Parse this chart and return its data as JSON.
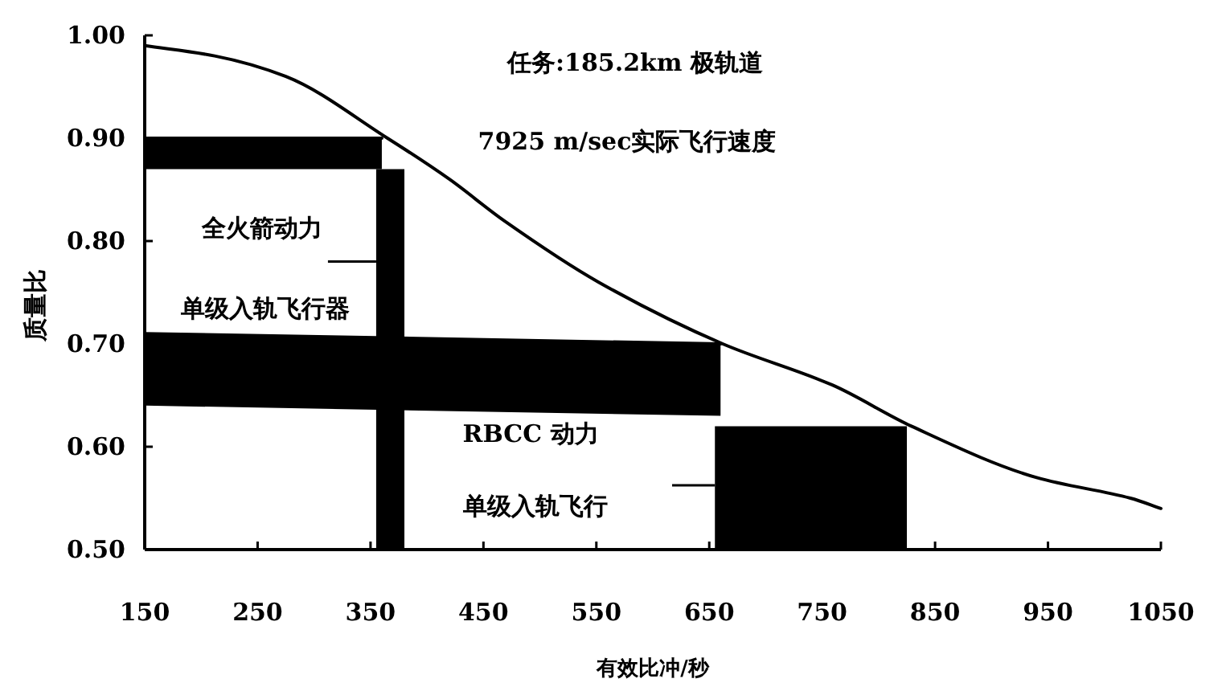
{
  "chart_data": {
    "type": "line",
    "xlabel": "有效比冲/秒",
    "ylabel": "质量比",
    "xlim": [
      150,
      1050
    ],
    "ylim": [
      0.5,
      1.0
    ],
    "xticks": [
      150,
      250,
      350,
      450,
      550,
      650,
      750,
      850,
      950,
      1050
    ],
    "yticks": [
      {
        "value": 0.5,
        "label": "0.50"
      },
      {
        "value": 0.6,
        "label": "0.60"
      },
      {
        "value": 0.7,
        "label": "0.70"
      },
      {
        "value": 0.8,
        "label": "0.80"
      },
      {
        "value": 0.9,
        "label": "0.90"
      },
      {
        "value": 1.0,
        "label": "1.00"
      }
    ],
    "line_style": "solid",
    "series": [
      {
        "type": "line",
        "color": "#000000",
        "x": [
          150,
          360
        ],
        "values": [
          0.9,
          0.9
        ],
        "lower": [
          0.87,
          0.87
        ],
        "upper": [
          0.9,
          0.9
        ]
      },
      {
        "type": "area",
        "color": "#000000",
        "x": [
          355,
          380
        ],
        "values": [
          0.87,
          0.87
        ]
      },
      {
        "type": "line",
        "color": "#000000",
        "x": [
          150,
          660
        ],
        "values": [
          0.71,
          0.7
        ],
        "lower": [
          0.64,
          0.63
        ],
        "upper": [
          0.71,
          0.7
        ]
      },
      {
        "type": "area",
        "color": "#000000",
        "x": [
          655,
          825
        ],
        "values": [
          0.62,
          0.62
        ]
      },
      {
        "color": "#000000",
        "x": [
          150,
          212,
          275,
          365,
          420,
          468,
          552,
          662,
          759,
          829,
          940,
          1023,
          1050
        ],
        "values": [
          0.99,
          0.98,
          0.96,
          0.9,
          0.86,
          0.82,
          0.76,
          0.7,
          0.66,
          0.62,
          0.57,
          0.55,
          0.54
        ]
      }
    ],
    "annotations": [
      "任务:185.2km 极轨道",
      "7925 m/sec实际飞行速度",
      {
        "text": "全火箭动力",
        "x": 355,
        "y": 0.78
      },
      "单级入轨飞行器",
      "RBCC 动力",
      "单级入轨飞行"
    ]
  }
}
